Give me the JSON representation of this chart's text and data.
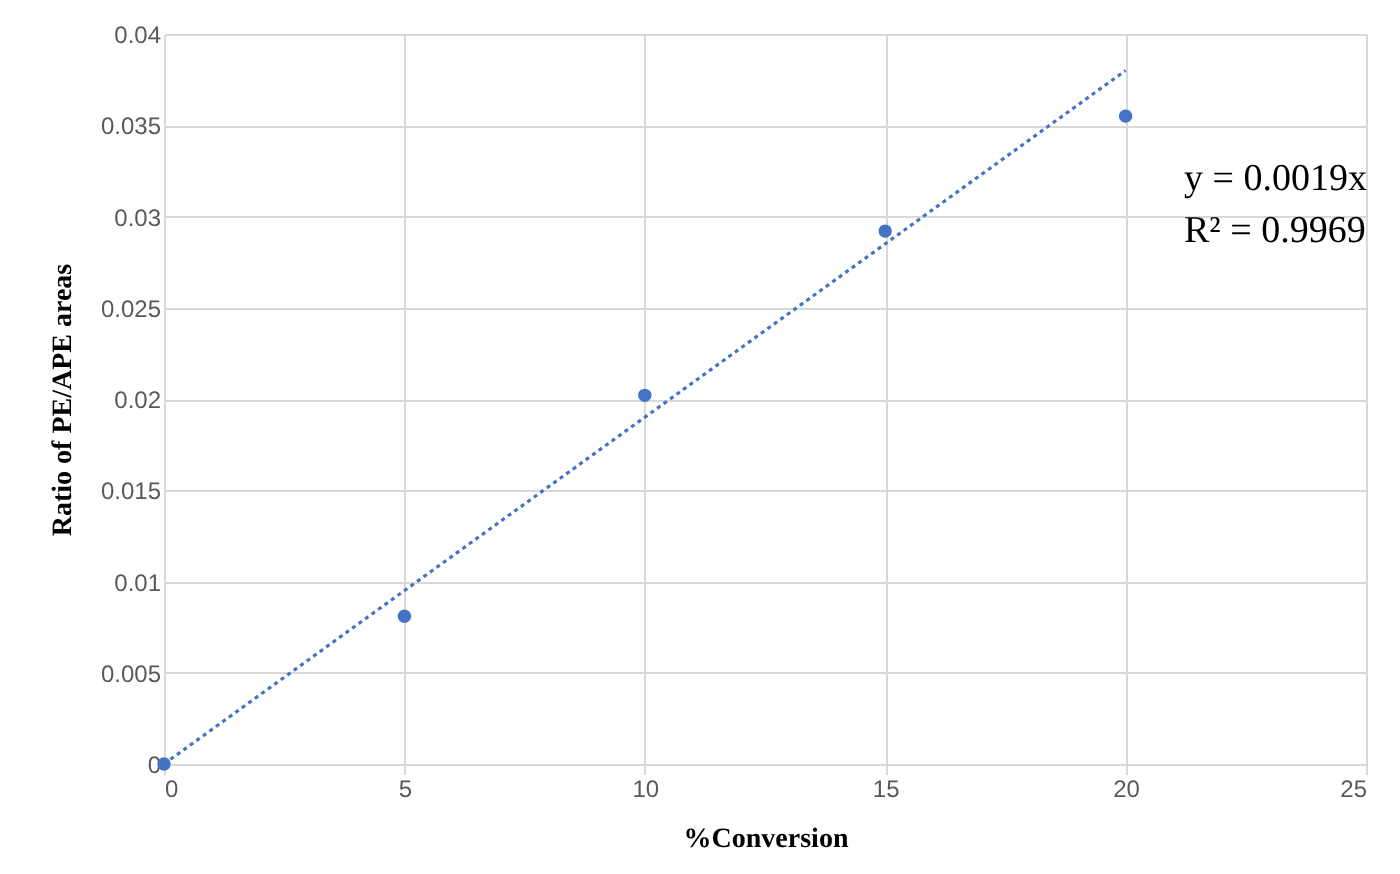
{
  "chart_data": {
    "type": "scatter",
    "xlabel": "%Conversion",
    "ylabel": "Ratio of PE/APE areas",
    "series": [
      {
        "type": "scatter",
        "color": "#4472c4",
        "marker": "circle",
        "x": [
          0,
          5,
          10,
          15,
          20
        ],
        "values": [
          0,
          0.0081,
          0.0202,
          0.0292,
          0.0355
        ]
      },
      {
        "type": "line",
        "color": "#4472c4",
        "marker": "none",
        "line_style": "dotted",
        "x": [
          0,
          20
        ],
        "values": [
          0,
          0.038
        ]
      }
    ],
    "xlim": [
      0,
      25
    ],
    "xticks": [
      0,
      5,
      10,
      15,
      20,
      25
    ],
    "ylim": [
      0,
      0.04
    ],
    "yticks": [
      0,
      0.005,
      0.01,
      0.015,
      0.02,
      0.025,
      0.03,
      0.035,
      0.04
    ],
    "grid": true,
    "annotations": [
      "y = 0.0019x",
      "R² = 0.9969"
    ]
  }
}
